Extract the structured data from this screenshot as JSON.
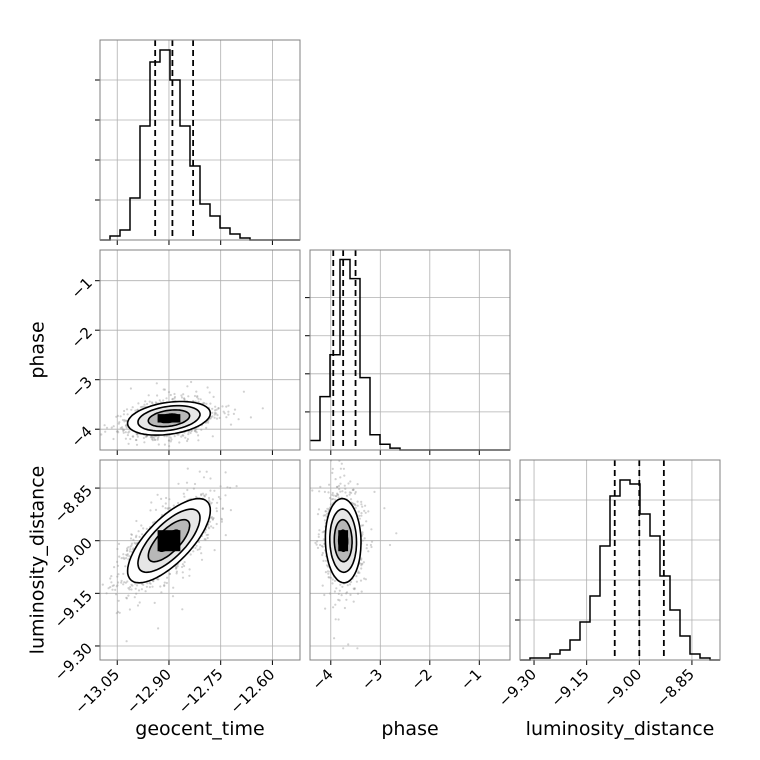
{
  "chart_data": {
    "type": "corner",
    "parameters": [
      "geocent_time",
      "phase",
      "luminosity_distance"
    ],
    "axis_labels": {
      "geocent_time": "geocent_time",
      "phase": "phase",
      "luminosity_distance": "luminosity_distance"
    },
    "ranges": {
      "geocent_time": [
        -13.1,
        -12.52
      ],
      "phase": [
        -4.42,
        -0.38
      ],
      "luminosity_distance": [
        -9.34,
        -8.77
      ]
    },
    "ticks": {
      "geocent_time": [
        {
          "v": -13.05,
          "label": "−13.05"
        },
        {
          "v": -12.9,
          "label": "−12.90"
        },
        {
          "v": -12.75,
          "label": "−12.75"
        },
        {
          "v": -12.6,
          "label": "−12.60"
        }
      ],
      "phase": [
        {
          "v": -4,
          "label": "−4"
        },
        {
          "v": -3,
          "label": "−3"
        },
        {
          "v": -2,
          "label": "−2"
        },
        {
          "v": -1,
          "label": "−1"
        }
      ],
      "luminosity_distance": [
        {
          "v": -9.3,
          "label": "−9.30"
        },
        {
          "v": -9.15,
          "label": "−9.15"
        },
        {
          "v": -9.0,
          "label": "−9.00"
        },
        {
          "v": -8.85,
          "label": "−8.85"
        }
      ]
    },
    "quantiles": {
      "geocent_time": [
        -12.94,
        -12.89,
        -12.83
      ],
      "phase": [
        -3.95,
        -3.75,
        -3.5
      ],
      "luminosity_distance": [
        -9.07,
        -9.0,
        -8.93
      ]
    },
    "histograms": {
      "geocent_time": {
        "edges": [
          -13.1,
          -13.071,
          -13.042,
          -13.013,
          -12.984,
          -12.955,
          -12.926,
          -12.897,
          -12.868,
          -12.839,
          -12.81,
          -12.781,
          -12.752,
          -12.723,
          -12.694,
          -12.665,
          -12.636,
          -12.607,
          -12.578,
          -12.549,
          -12.52
        ],
        "counts": [
          0,
          2,
          5,
          21,
          57,
          89,
          95,
          80,
          57,
          37,
          18,
          12,
          6,
          3,
          1,
          0,
          0,
          0,
          0,
          0
        ],
        "ymax": 100
      },
      "phase": {
        "edges": [
          -4.42,
          -4.218,
          -4.016,
          -3.814,
          -3.612,
          -3.41,
          -3.208,
          -3.006,
          -2.804,
          -2.602,
          -2.4,
          -2.198,
          -1.996,
          -1.794,
          -1.592,
          -1.39,
          -1.188,
          -0.986,
          -0.784,
          -0.582,
          -0.38
        ],
        "counts": [
          5,
          28,
          50,
          100,
          90,
          38,
          8,
          3,
          1,
          0,
          0,
          0,
          0,
          0,
          0,
          0,
          0,
          0,
          0,
          0
        ],
        "ymax": 105
      },
      "luminosity_distance": {
        "edges": [
          -9.34,
          -9.3115,
          -9.283,
          -9.2545,
          -9.226,
          -9.1975,
          -9.169,
          -9.1405,
          -9.112,
          -9.0835,
          -9.055,
          -9.0265,
          -8.998,
          -8.9695,
          -8.941,
          -8.9125,
          -8.884,
          -8.8555,
          -8.827,
          -8.7985,
          -8.77
        ],
        "counts": [
          0,
          1,
          1,
          3,
          5,
          10,
          19,
          32,
          57,
          82,
          90,
          88,
          73,
          62,
          42,
          25,
          12,
          3,
          1,
          0
        ],
        "ymax": 100
      }
    },
    "posterior_2d": {
      "phase_vs_geocent_time": {
        "x": "geocent_time",
        "y": "phase",
        "mean": [
          -12.9,
          -3.78
        ],
        "sd": [
          0.06,
          0.17
        ],
        "corr": 0.3
      },
      "luminosity_distance_vs_geocent_time": {
        "x": "geocent_time",
        "y": "luminosity_distance",
        "mean": [
          -12.9,
          -9.0
        ],
        "sd": [
          0.06,
          0.06
        ],
        "corr": 0.72
      },
      "luminosity_distance_vs_phase": {
        "x": "phase",
        "y": "luminosity_distance",
        "mean": [
          -3.75,
          -9.0
        ],
        "sd": [
          0.18,
          0.06
        ],
        "corr": -0.05
      }
    },
    "contour_levels_sigma": [
      0.5,
      1.0,
      1.5,
      2.0
    ],
    "grid": true,
    "legend": "none",
    "colors": {
      "hist": "#000000",
      "quantile": "#000000",
      "scatter": "#9a9a9a",
      "contour": "#000000",
      "grid": "#b0b0b0",
      "spine": "#808080"
    }
  }
}
